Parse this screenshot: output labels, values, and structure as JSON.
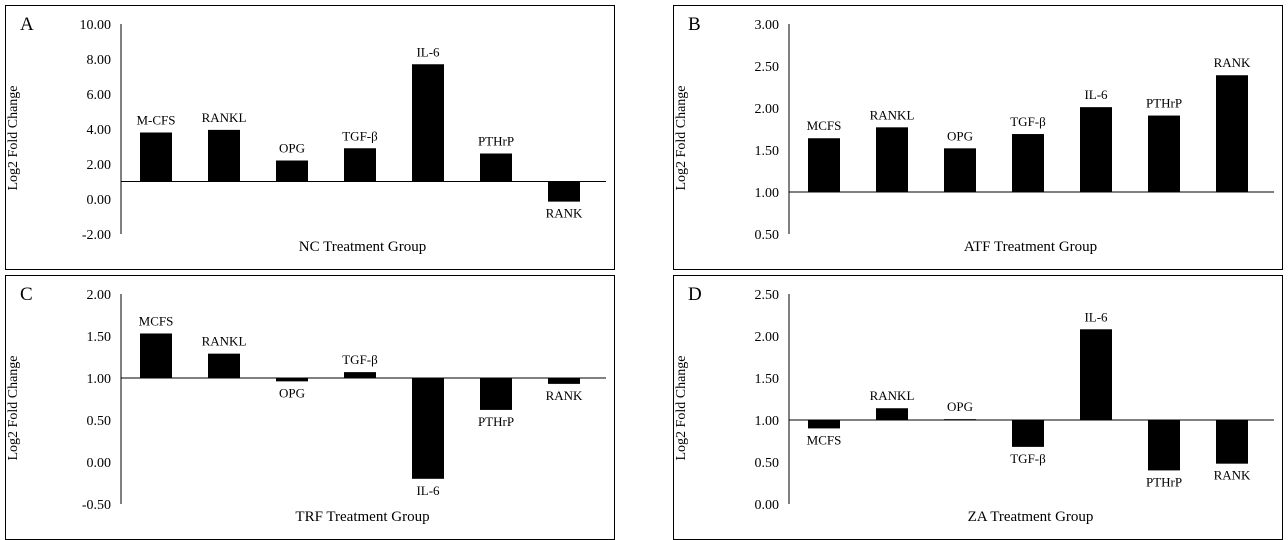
{
  "y_axis_label": "Log2 Fold Change",
  "chart_data": [
    {
      "panel": "A",
      "type": "bar",
      "xlabel": "NC Treatment Group",
      "ylabel": "Log2 Fold Change",
      "ylim": [
        -2.0,
        10.0
      ],
      "yticks": [
        "10.00",
        "8.00",
        "6.00",
        "4.00",
        "2.00",
        "0.00",
        "-2.00"
      ],
      "baseline": 1.0,
      "categories": [
        "M-CFS",
        "RANKL",
        "OPG",
        "TGF-β",
        "IL-6",
        "PTHrP",
        "RANK"
      ],
      "values": [
        3.8,
        3.95,
        2.2,
        2.9,
        7.7,
        2.6,
        -0.15
      ]
    },
    {
      "panel": "B",
      "type": "bar",
      "xlabel": "ATF Treatment Group",
      "ylabel": "Log2 Fold Change",
      "ylim": [
        0.5,
        3.0
      ],
      "yticks": [
        "3.00",
        "2.50",
        "2.00",
        "1.50",
        "1.00",
        "0.50"
      ],
      "baseline": 1.0,
      "categories": [
        "MCFS",
        "RANKL",
        "OPG",
        "TGF-β",
        "IL-6",
        "PTHrP",
        "RANK"
      ],
      "values": [
        1.64,
        1.77,
        1.52,
        1.69,
        2.01,
        1.91,
        2.39
      ]
    },
    {
      "panel": "C",
      "type": "bar",
      "xlabel": "TRF Treatment Group",
      "ylabel": "Log2 Fold Change",
      "ylim": [
        -0.5,
        2.0
      ],
      "yticks": [
        "2.00",
        "1.50",
        "1.00",
        "0.50",
        "0.00",
        "-0.50"
      ],
      "baseline": 1.0,
      "categories": [
        "MCFS",
        "RANKL",
        "OPG",
        "TGF-β",
        "IL-6",
        "PTHrP",
        "RANK"
      ],
      "values": [
        1.53,
        1.29,
        0.96,
        1.07,
        -0.2,
        0.62,
        0.93
      ]
    },
    {
      "panel": "D",
      "type": "bar",
      "xlabel": "ZA Treatment Group",
      "ylabel": "Log2 Fold Change",
      "ylim": [
        0.0,
        2.5
      ],
      "yticks": [
        "2.50",
        "2.00",
        "1.50",
        "1.00",
        "0.50",
        "0.00"
      ],
      "baseline": 1.0,
      "categories": [
        "MCFS",
        "RANKL",
        "OPG",
        "TGF-β",
        "IL-6",
        "PTHrP",
        "RANK"
      ],
      "values": [
        0.9,
        1.14,
        1.01,
        0.68,
        2.08,
        0.4,
        0.48
      ]
    }
  ]
}
